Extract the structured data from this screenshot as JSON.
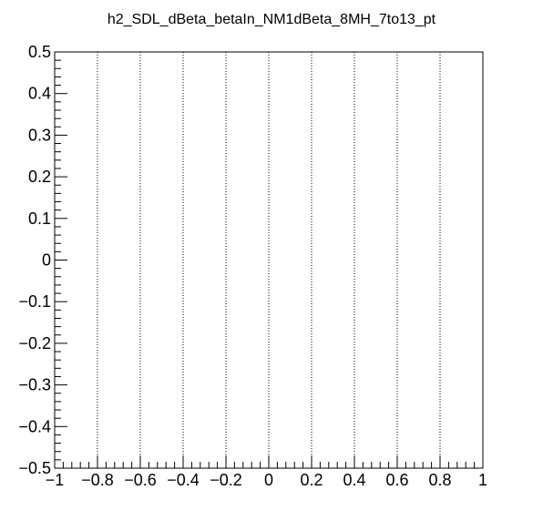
{
  "chart_data": {
    "type": "heatmap",
    "title": "h2_SDL_dBeta_betaIn_NM1dBeta_8MH_7to13_pt",
    "xlabel": "",
    "ylabel": "",
    "xlim": [
      -1,
      1
    ],
    "ylim": [
      -0.5,
      0.5
    ],
    "x_ticks": [
      -1,
      -0.8,
      -0.6,
      -0.4,
      -0.2,
      0,
      0.2,
      0.4,
      0.6,
      0.8,
      1
    ],
    "x_tick_labels": [
      "−1",
      "−0.8",
      "−0.6",
      "−0.4",
      "−0.2",
      "0",
      "0.2",
      "0.4",
      "0.6",
      "0.8",
      "1"
    ],
    "y_ticks": [
      -0.5,
      -0.4,
      -0.3,
      -0.2,
      -0.1,
      0,
      0.1,
      0.2,
      0.3,
      0.4,
      0.5
    ],
    "y_tick_labels": [
      "−0.5",
      "−0.4",
      "−0.3",
      "−0.2",
      "−0.1",
      "0",
      "0.1",
      "0.2",
      "0.3",
      "0.4",
      "0.5"
    ],
    "x_minor_divisions": 5,
    "y_minor_divisions": 5,
    "grid": {
      "x": true,
      "y": false,
      "style": "dotted"
    },
    "values": []
  }
}
